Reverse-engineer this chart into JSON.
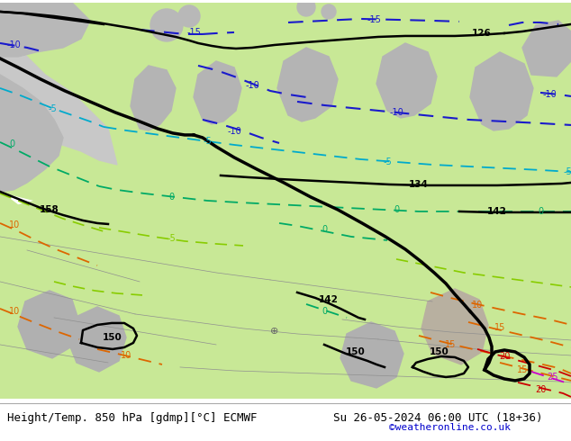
{
  "title_left": "Height/Temp. 850 hPa [gdmp][°C] ECMWF",
  "title_right": "Su 26-05-2024 06:00 UTC (18+36)",
  "credit": "©weatheronline.co.uk",
  "figsize": [
    6.34,
    4.9
  ],
  "dpi": 100,
  "font_size_title": 9,
  "font_size_credit": 8,
  "text_color": "#000000",
  "credit_color": "#0000cc",
  "map_bg": "#c8c8c8",
  "land_green": "#c8e896",
  "land_gray": "#b4b4b4",
  "bottom_bg": "#f0f0f0"
}
